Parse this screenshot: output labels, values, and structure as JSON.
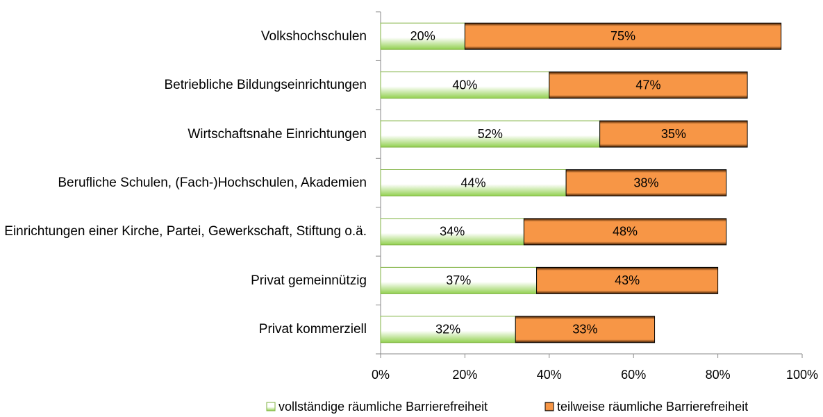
{
  "chart_data": {
    "type": "stacked-bar-horizontal",
    "categories": [
      "Volkshochschulen",
      "Betriebliche Bildungseinrichtungen",
      "Wirtschaftsnahe Einrichtungen",
      "Berufliche Schulen, (Fach-)Hochschulen, Akademien",
      "Einrichtungen einer Kirche, Partei, Gewerkschaft, Stiftung o.ä.",
      "Privat gemeinnützig",
      "Privat kommerziell"
    ],
    "series": [
      {
        "name": "vollständige räumliche Barrierefreiheit",
        "color": "#92d050",
        "values": [
          20,
          40,
          52,
          44,
          34,
          37,
          32
        ],
        "value_labels": [
          "20%",
          "40%",
          "52%",
          "44%",
          "34%",
          "37%",
          "32%"
        ]
      },
      {
        "name": "teilweise räumliche Barrierefreiheit",
        "color": "#f79646",
        "values": [
          75,
          47,
          35,
          38,
          48,
          43,
          33
        ],
        "value_labels": [
          "75%",
          "47%",
          "35%",
          "38%",
          "48%",
          "43%",
          "33%"
        ]
      }
    ],
    "xlim": [
      0,
      100
    ],
    "xticks": [
      {
        "value": 0,
        "label": "0%"
      },
      {
        "value": 20,
        "label": "20%"
      },
      {
        "value": 40,
        "label": "40%"
      },
      {
        "value": 60,
        "label": "60%"
      },
      {
        "value": 80,
        "label": "80%"
      },
      {
        "value": 100,
        "label": "100%"
      }
    ],
    "legend": "bottom"
  }
}
